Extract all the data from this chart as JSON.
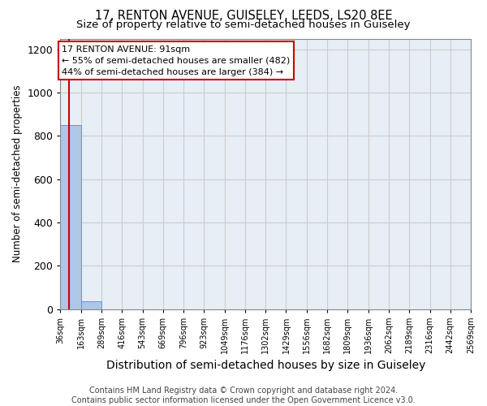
{
  "title": "17, RENTON AVENUE, GUISELEY, LEEDS, LS20 8EE",
  "subtitle": "Size of property relative to semi-detached houses in Guiseley",
  "xlabel": "Distribution of semi-detached houses by size in Guiseley",
  "ylabel": "Number of semi-detached properties",
  "bin_edges": [
    36,
    163,
    289,
    416,
    543,
    669,
    796,
    923,
    1049,
    1176,
    1302,
    1429,
    1556,
    1682,
    1809,
    1936,
    2062,
    2189,
    2316,
    2442,
    2569
  ],
  "bin_counts": [
    850,
    35,
    0,
    0,
    0,
    0,
    0,
    0,
    0,
    0,
    0,
    0,
    0,
    0,
    0,
    0,
    0,
    0,
    0,
    0
  ],
  "bar_color": "#aec6e8",
  "bar_edgecolor": "#5b9bd5",
  "property_size": 91,
  "property_line_color": "#cc0000",
  "annotation_text": "17 RENTON AVENUE: 91sqm\n← 55% of semi-detached houses are smaller (482)\n44% of semi-detached houses are larger (384) →",
  "annotation_box_color": "#cc0000",
  "ylim": [
    0,
    1250
  ],
  "yticks": [
    0,
    200,
    400,
    600,
    800,
    1000,
    1200
  ],
  "tick_labels": [
    "36sqm",
    "163sqm",
    "289sqm",
    "416sqm",
    "543sqm",
    "669sqm",
    "796sqm",
    "923sqm",
    "1049sqm",
    "1176sqm",
    "1302sqm",
    "1429sqm",
    "1556sqm",
    "1682sqm",
    "1809sqm",
    "1936sqm",
    "2062sqm",
    "2189sqm",
    "2316sqm",
    "2442sqm",
    "2569sqm"
  ],
  "footer": "Contains HM Land Registry data © Crown copyright and database right 2024.\nContains public sector information licensed under the Open Government Licence v3.0.",
  "grid_color": "#cccccc",
  "bg_color": "#e8eef5",
  "title_fontsize": 10.5,
  "subtitle_fontsize": 9.5,
  "xlabel_fontsize": 10,
  "ylabel_fontsize": 8.5,
  "ytick_fontsize": 9,
  "xtick_fontsize": 7,
  "footer_fontsize": 7,
  "ann_fontsize": 8
}
